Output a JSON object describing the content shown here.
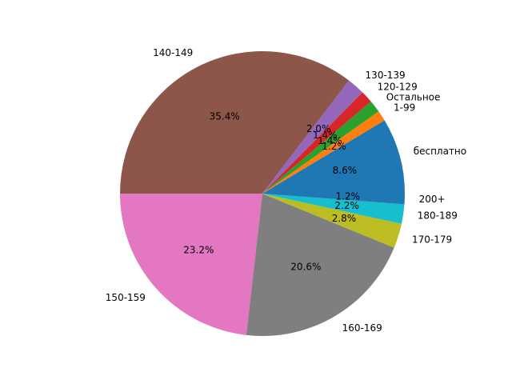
{
  "chart_data": {
    "type": "pie",
    "start_angle_deg": 0,
    "direction": "counterclockwise",
    "slices": [
      {
        "label": "бесплатно",
        "pct_label": "8.6%",
        "value": 8.6,
        "color": "#1f77b4"
      },
      {
        "label": "1-99",
        "pct_label": "1.2%",
        "value": 1.2,
        "color": "#ff7f0e"
      },
      {
        "label": "Остальное",
        "pct_label": "1.4%",
        "value": 1.4,
        "color": "#2ca02c"
      },
      {
        "label": "120-129",
        "pct_label": "1.4%",
        "value": 1.4,
        "color": "#d62728"
      },
      {
        "label": "130-139",
        "pct_label": "2.0%",
        "value": 2.0,
        "color": "#9467bd"
      },
      {
        "label": "140-149",
        "pct_label": "35.4%",
        "value": 35.4,
        "color": "#8c564b"
      },
      {
        "label": "150-159",
        "pct_label": "23.2%",
        "value": 23.2,
        "color": "#e377c2"
      },
      {
        "label": "160-169",
        "pct_label": "20.6%",
        "value": 20.6,
        "color": "#7f7f7f"
      },
      {
        "label": "170-179",
        "pct_label": "2.8%",
        "value": 2.8,
        "color": "#bcbd22"
      },
      {
        "label": "180-189",
        "pct_label": "2.2%",
        "value": 2.2,
        "color": "#17becf"
      },
      {
        "label": "200+",
        "pct_label": "1.2%",
        "value": 1.2,
        "color": "#1f77b4"
      }
    ]
  }
}
